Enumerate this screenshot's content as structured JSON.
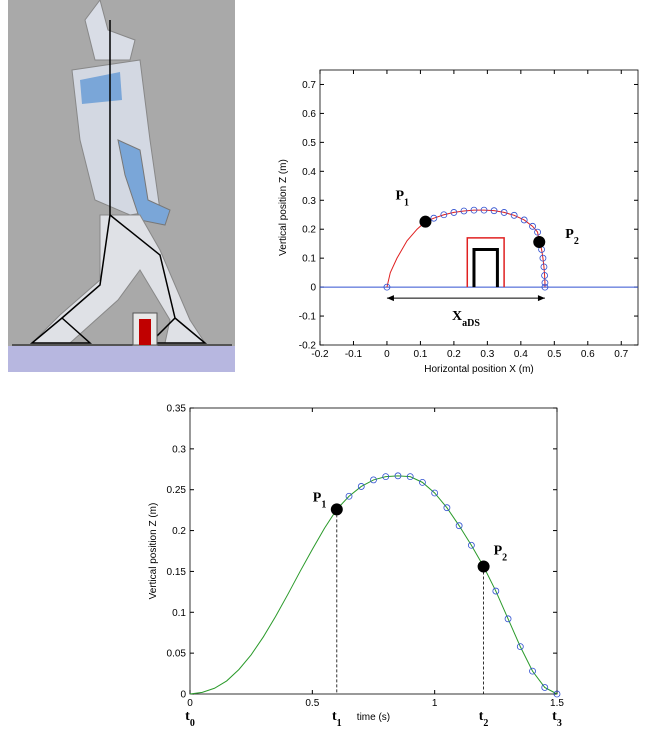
{
  "chart_data": [
    {
      "type": "line",
      "y_label": "Vertical position Z (m)",
      "x_label": "Horizontal position X (m)",
      "xlim": [
        -0.2,
        0.75
      ],
      "ylim": [
        -0.2,
        0.75
      ],
      "xticks": [
        -0.2,
        -0.1,
        0,
        0.1,
        0.2,
        0.3,
        0.4,
        0.5,
        0.6,
        0.7
      ],
      "yticks": [
        -0.2,
        -0.1,
        0,
        0.1,
        0.2,
        0.3,
        0.4,
        0.5,
        0.6,
        0.7
      ],
      "obstacle": {
        "x": [
          0.24,
          0.35
        ],
        "height": 0.17,
        "color": "#e02020"
      },
      "inner_obstacle": {
        "x": [
          0.26,
          0.33
        ],
        "height": 0.13,
        "color": "#000000"
      },
      "series": [
        {
          "marker": "line",
          "color": "#e02020",
          "x": [
            0,
            0.01,
            0.03,
            0.06,
            0.09,
            0.115,
            0.14,
            0.17,
            0.2,
            0.23,
            0.26,
            0.29,
            0.32,
            0.35,
            0.38,
            0.41,
            0.435,
            0.45,
            0.455,
            0.462,
            0.466,
            0.469,
            0.471,
            0.472,
            0.472
          ],
          "values": [
            0,
            0.05,
            0.1,
            0.16,
            0.2,
            0.226,
            0.238,
            0.25,
            0.258,
            0.263,
            0.266,
            0.266,
            0.264,
            0.258,
            0.248,
            0.232,
            0.21,
            0.19,
            0.156,
            0.13,
            0.1,
            0.07,
            0.04,
            0.015,
            0
          ]
        },
        {
          "marker": "open-circle",
          "color": "#3050d0",
          "x": [
            0,
            0.14,
            0.17,
            0.2,
            0.23,
            0.26,
            0.29,
            0.32,
            0.35,
            0.38,
            0.41,
            0.435,
            0.45,
            0.462,
            0.466,
            0.469,
            0.471,
            0.472,
            0.472
          ],
          "values": [
            0,
            0.238,
            0.25,
            0.258,
            0.263,
            0.266,
            0.266,
            0.264,
            0.258,
            0.248,
            0.232,
            0.21,
            0.19,
            0.13,
            0.1,
            0.07,
            0.04,
            0.015,
            0
          ]
        },
        {
          "marker": "filled-circle",
          "color": "#000000",
          "x": [
            0.115,
            0.455
          ],
          "values": [
            0.226,
            0.156
          ]
        }
      ],
      "point_labels": [
        {
          "base": "P",
          "sub": "1"
        },
        {
          "base": "P",
          "sub": "2"
        }
      ],
      "span_label": {
        "base": "X",
        "sub": "aDS"
      }
    },
    {
      "type": "line",
      "y_label": "Vertical position Z (m)",
      "x_label": "time (s)",
      "xlim": [
        0,
        1.5
      ],
      "ylim": [
        0,
        0.35
      ],
      "xticks": [
        0,
        0.5,
        1,
        1.5
      ],
      "yticks": [
        0,
        0.05,
        0.1,
        0.15,
        0.2,
        0.25,
        0.3,
        0.35
      ],
      "series": [
        {
          "marker": "line",
          "color": "#2a9a2a",
          "x": [
            0,
            0.05,
            0.1,
            0.15,
            0.2,
            0.25,
            0.3,
            0.35,
            0.4,
            0.45,
            0.5,
            0.55,
            0.6,
            0.65,
            0.7,
            0.75,
            0.8,
            0.85,
            0.9,
            0.95,
            1.0,
            1.05,
            1.1,
            1.15,
            1.2,
            1.25,
            1.3,
            1.35,
            1.4,
            1.45,
            1.5
          ],
          "values": [
            0,
            0.002,
            0.007,
            0.016,
            0.03,
            0.048,
            0.07,
            0.095,
            0.122,
            0.15,
            0.177,
            0.203,
            0.226,
            0.242,
            0.254,
            0.262,
            0.266,
            0.267,
            0.266,
            0.259,
            0.246,
            0.228,
            0.206,
            0.182,
            0.156,
            0.126,
            0.092,
            0.058,
            0.028,
            0.008,
            0
          ]
        },
        {
          "marker": "open-circle",
          "color": "#3050d0",
          "x": [
            0.6,
            0.65,
            0.7,
            0.75,
            0.8,
            0.85,
            0.9,
            0.95,
            1.0,
            1.05,
            1.1,
            1.15,
            1.2,
            1.25,
            1.3,
            1.35,
            1.4,
            1.45,
            1.5
          ],
          "values": [
            0.226,
            0.242,
            0.254,
            0.262,
            0.266,
            0.267,
            0.266,
            0.259,
            0.246,
            0.228,
            0.206,
            0.182,
            0.156,
            0.126,
            0.092,
            0.058,
            0.028,
            0.008,
            0
          ]
        },
        {
          "marker": "filled-circle",
          "color": "#000000",
          "x": [
            0.6,
            1.2
          ],
          "values": [
            0.226,
            0.156
          ]
        }
      ],
      "point_labels": [
        {
          "base": "P",
          "sub": "1"
        },
        {
          "base": "P",
          "sub": "2"
        }
      ],
      "time_marks": [
        {
          "value": 0,
          "base": "t",
          "sub": "0"
        },
        {
          "value": 0.6,
          "base": "t",
          "sub": "1"
        },
        {
          "value": 1.2,
          "base": "t",
          "sub": "2"
        },
        {
          "value": 1.5,
          "base": "t",
          "sub": "3"
        }
      ]
    }
  ]
}
